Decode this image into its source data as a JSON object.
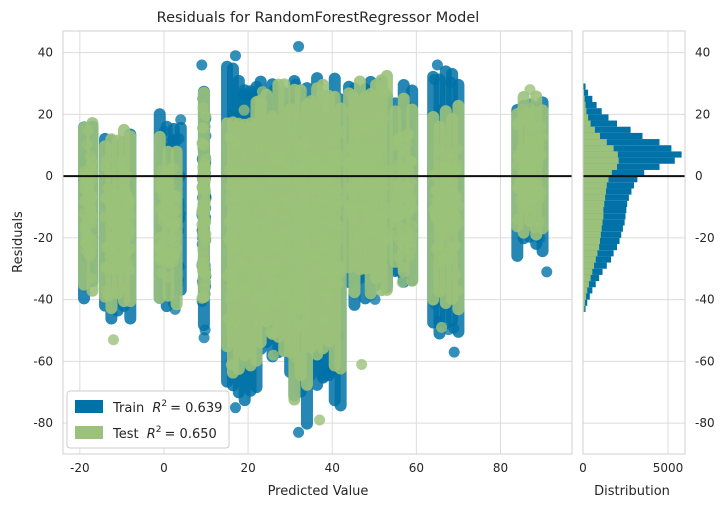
{
  "chart_data": {
    "type": "scatter",
    "title": "Residuals for RandomForestRegressor Model",
    "xlabel": "Predicted Value",
    "ylabel": "Residuals",
    "xlim": [
      -24,
      97
    ],
    "ylim": [
      -90,
      47
    ],
    "x_ticks": [
      "-20",
      "0",
      "20",
      "40",
      "60",
      "80"
    ],
    "y_ticks": [
      "40",
      "20",
      "0",
      "-20",
      "-40",
      "-60",
      "-80"
    ],
    "grid": true,
    "zero_line": 0,
    "legend_position": "lower-left",
    "series": [
      {
        "name": "Train",
        "r2_text": "= 0.639",
        "color": "#0072a7",
        "clusters": [
          {
            "x": [
              -19,
              -17
            ],
            "y": [
              -44,
              23
            ]
          },
          {
            "x": [
              -14,
              -8
            ],
            "y": [
              -49,
              18
            ]
          },
          {
            "x": [
              -1,
              4
            ],
            "y": [
              -45,
              25
            ]
          },
          {
            "x": [
              9,
              10
            ],
            "y": [
              -59,
              36
            ]
          },
          {
            "x": [
              15,
              22
            ],
            "y": [
              -76,
              39
            ]
          },
          {
            "x": [
              23,
              30
            ],
            "y": [
              -66,
              35
            ]
          },
          {
            "x": [
              31,
              34
            ],
            "y": [
              -84,
              42
            ]
          },
          {
            "x": [
              35,
              42
            ],
            "y": [
              -78,
              34
            ]
          },
          {
            "x": [
              44,
              53
            ],
            "y": [
              -44,
              34
            ]
          },
          {
            "x": [
              55,
              59
            ],
            "y": [
              -41,
              32
            ]
          },
          {
            "x": [
              64,
              70
            ],
            "y": [
              -57,
              36
            ]
          },
          {
            "x": [
              84,
              90
            ],
            "y": [
              -28,
              27
            ]
          }
        ],
        "outliers": [
          {
            "x": 9,
            "y": 36
          },
          {
            "x": 17,
            "y": 39
          },
          {
            "x": 32,
            "y": 42
          },
          {
            "x": 65,
            "y": 36
          },
          {
            "x": 17,
            "y": -75
          },
          {
            "x": 32,
            "y": -83
          },
          {
            "x": 38,
            "y": -65
          },
          {
            "x": 91,
            "y": -31
          },
          {
            "x": 69,
            "y": -57
          }
        ]
      },
      {
        "name": "Test",
        "r2_text": "= 0.650",
        "color": "#9bc17a",
        "clusters": [
          {
            "x": [
              -19,
              -17
            ],
            "y": [
              -40,
              23
            ]
          },
          {
            "x": [
              -14,
              -8
            ],
            "y": [
              -47,
              17
            ]
          },
          {
            "x": [
              -1,
              3
            ],
            "y": [
              -44,
              17
            ]
          },
          {
            "x": [
              9,
              10
            ],
            "y": [
              -50,
              30
            ]
          },
          {
            "x": [
              15,
              22
            ],
            "y": [
              -66,
              30
            ]
          },
          {
            "x": [
              23,
              30
            ],
            "y": [
              -60,
              32
            ]
          },
          {
            "x": [
              31,
              34
            ],
            "y": [
              -75,
              37
            ]
          },
          {
            "x": [
              35,
              42
            ],
            "y": [
              -65,
              33
            ]
          },
          {
            "x": [
              44,
              53
            ],
            "y": [
              -40,
              35
            ]
          },
          {
            "x": [
              55,
              59
            ],
            "y": [
              -38,
              31
            ]
          },
          {
            "x": [
              64,
              70
            ],
            "y": [
              -48,
              26
            ]
          },
          {
            "x": [
              84,
              90
            ],
            "y": [
              -22,
              28
            ]
          }
        ],
        "outliers": [
          {
            "x": 16,
            "y": -61
          },
          {
            "x": 26,
            "y": -58
          },
          {
            "x": 37,
            "y": -79
          },
          {
            "x": 47,
            "y": -61
          },
          {
            "x": 87,
            "y": 28
          },
          {
            "x": 66,
            "y": -49
          },
          {
            "x": -12,
            "y": -53
          },
          {
            "x": 26,
            "y": -40
          }
        ]
      }
    ],
    "histogram": {
      "xlabel": "Distribution",
      "x_ticks": [
        "0",
        "5000"
      ],
      "xlim": [
        0,
        6000
      ],
      "y_ticks": [
        "40",
        "20",
        "0",
        "-20",
        "-40",
        "-60",
        "-80"
      ],
      "bin_edges": [
        -44,
        -42,
        -40,
        -38,
        -36,
        -34,
        -32,
        -30,
        -28,
        -26,
        -24,
        -22,
        -20,
        -18,
        -16,
        -14,
        -12,
        -10,
        -8,
        -6,
        -4,
        -2,
        0,
        2,
        4,
        6,
        8,
        10,
        12,
        14,
        16,
        18,
        20,
        22,
        24,
        26,
        28,
        30
      ],
      "train_counts": [
        150,
        250,
        400,
        550,
        750,
        950,
        1150,
        1400,
        1650,
        1800,
        2000,
        2150,
        2250,
        2350,
        2450,
        2500,
        2550,
        2600,
        2700,
        2850,
        3000,
        3200,
        3600,
        4500,
        5400,
        5800,
        5200,
        4500,
        3500,
        2800,
        2000,
        1500,
        1100,
        800,
        550,
        300,
        150
      ],
      "test_counts": [
        80,
        120,
        180,
        250,
        350,
        450,
        550,
        650,
        750,
        850,
        950,
        1000,
        1050,
        1100,
        1150,
        1200,
        1200,
        1250,
        1300,
        1350,
        1400,
        1500,
        1700,
        2000,
        2100,
        2050,
        1800,
        1400,
        1000,
        700,
        450,
        300,
        200,
        150,
        100,
        60,
        30
      ]
    }
  }
}
